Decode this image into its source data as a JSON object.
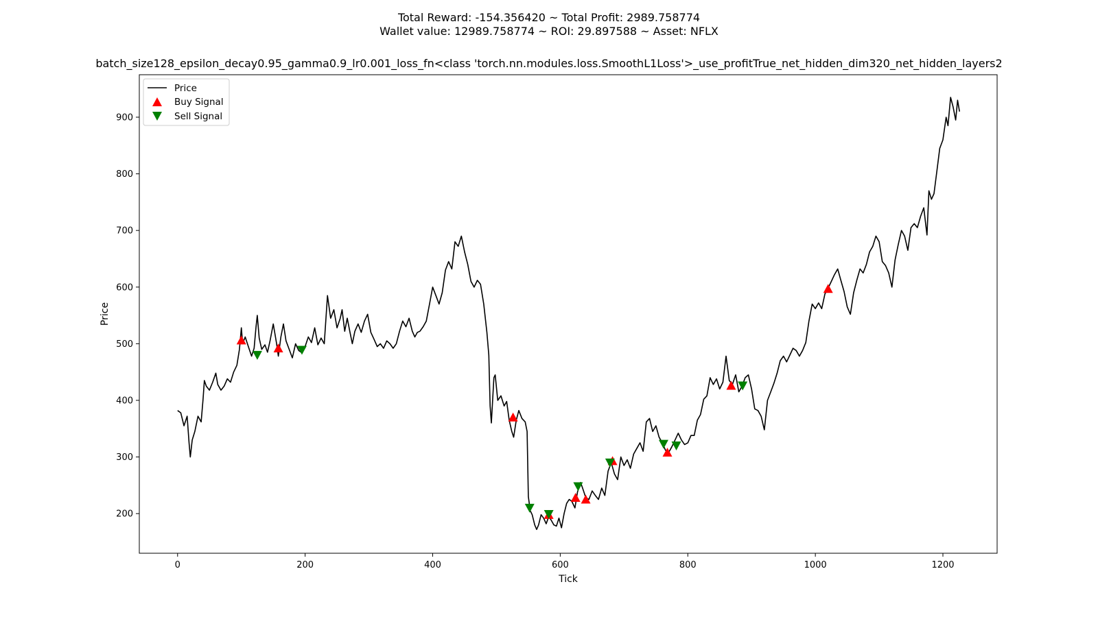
{
  "chart_data": {
    "type": "line",
    "title_line1": "Total Reward: -154.356420 ~ Total Profit: 2989.758774",
    "title_line2": "Wallet value: 12989.758774 ~ ROI: 29.897588 ~ Asset: NFLX",
    "subtitle": "batch_size128_epsilon_decay0.95_gamma0.9_lr0.001_loss_fn<class 'torch.nn.modules.loss.SmoothL1Loss'>_use_profitTrue_net_hidden_dim320_net_hidden_layers2",
    "xlabel": "Tick",
    "ylabel": "Price",
    "xlim": [
      -60,
      1285
    ],
    "ylim": [
      130,
      975
    ],
    "xticks": [
      0,
      200,
      400,
      600,
      800,
      1000,
      1200
    ],
    "yticks": [
      200,
      300,
      400,
      500,
      600,
      700,
      800,
      900
    ],
    "grid": false,
    "legend_position": "top-left",
    "legend": [
      {
        "label": "Price",
        "kind": "line",
        "color": "#000000"
      },
      {
        "label": "Buy Signal",
        "kind": "triangle-up",
        "color": "#ff0000"
      },
      {
        "label": "Sell Signal",
        "kind": "triangle-down",
        "color": "#008000"
      }
    ],
    "series": [
      {
        "name": "Price",
        "color": "#000000",
        "points": [
          [
            0,
            382
          ],
          [
            5,
            378
          ],
          [
            10,
            355
          ],
          [
            15,
            372
          ],
          [
            18,
            325
          ],
          [
            20,
            300
          ],
          [
            23,
            330
          ],
          [
            27,
            345
          ],
          [
            32,
            372
          ],
          [
            37,
            362
          ],
          [
            40,
            402
          ],
          [
            42,
            435
          ],
          [
            45,
            425
          ],
          [
            50,
            418
          ],
          [
            55,
            432
          ],
          [
            60,
            448
          ],
          [
            63,
            428
          ],
          [
            68,
            418
          ],
          [
            73,
            425
          ],
          [
            78,
            438
          ],
          [
            83,
            432
          ],
          [
            88,
            450
          ],
          [
            93,
            462
          ],
          [
            97,
            490
          ],
          [
            100,
            528
          ],
          [
            102,
            500
          ],
          [
            106,
            512
          ],
          [
            111,
            495
          ],
          [
            116,
            478
          ],
          [
            120,
            492
          ],
          [
            123,
            530
          ],
          [
            125,
            550
          ],
          [
            128,
            510
          ],
          [
            132,
            490
          ],
          [
            137,
            498
          ],
          [
            141,
            485
          ],
          [
            145,
            505
          ],
          [
            150,
            535
          ],
          [
            155,
            502
          ],
          [
            158,
            478
          ],
          [
            162,
            512
          ],
          [
            166,
            535
          ],
          [
            170,
            505
          ],
          [
            175,
            490
          ],
          [
            180,
            475
          ],
          [
            185,
            500
          ],
          [
            190,
            488
          ],
          [
            195,
            484
          ],
          [
            200,
            495
          ],
          [
            205,
            512
          ],
          [
            210,
            502
          ],
          [
            215,
            528
          ],
          [
            220,
            498
          ],
          [
            225,
            510
          ],
          [
            230,
            500
          ],
          [
            235,
            585
          ],
          [
            240,
            545
          ],
          [
            245,
            560
          ],
          [
            250,
            528
          ],
          [
            255,
            545
          ],
          [
            258,
            560
          ],
          [
            262,
            522
          ],
          [
            266,
            545
          ],
          [
            270,
            522
          ],
          [
            274,
            500
          ],
          [
            278,
            522
          ],
          [
            283,
            535
          ],
          [
            288,
            520
          ],
          [
            293,
            540
          ],
          [
            298,
            552
          ],
          [
            303,
            520
          ],
          [
            308,
            508
          ],
          [
            313,
            495
          ],
          [
            318,
            500
          ],
          [
            323,
            492
          ],
          [
            328,
            505
          ],
          [
            333,
            500
          ],
          [
            338,
            492
          ],
          [
            343,
            500
          ],
          [
            348,
            522
          ],
          [
            353,
            540
          ],
          [
            358,
            530
          ],
          [
            363,
            545
          ],
          [
            368,
            522
          ],
          [
            372,
            512
          ],
          [
            376,
            520
          ],
          [
            380,
            522
          ],
          [
            385,
            530
          ],
          [
            390,
            540
          ],
          [
            395,
            570
          ],
          [
            400,
            600
          ],
          [
            405,
            585
          ],
          [
            410,
            570
          ],
          [
            415,
            590
          ],
          [
            420,
            630
          ],
          [
            425,
            645
          ],
          [
            430,
            632
          ],
          [
            435,
            680
          ],
          [
            440,
            672
          ],
          [
            445,
            690
          ],
          [
            450,
            662
          ],
          [
            455,
            640
          ],
          [
            460,
            610
          ],
          [
            465,
            600
          ],
          [
            470,
            612
          ],
          [
            475,
            605
          ],
          [
            480,
            570
          ],
          [
            485,
            520
          ],
          [
            488,
            480
          ],
          [
            490,
            390
          ],
          [
            492,
            360
          ],
          [
            496,
            440
          ],
          [
            498,
            445
          ],
          [
            502,
            400
          ],
          [
            507,
            408
          ],
          [
            512,
            390
          ],
          [
            516,
            398
          ],
          [
            520,
            365
          ],
          [
            524,
            345
          ],
          [
            527,
            335
          ],
          [
            531,
            365
          ],
          [
            535,
            382
          ],
          [
            540,
            368
          ],
          [
            545,
            362
          ],
          [
            548,
            345
          ],
          [
            550,
            230
          ],
          [
            553,
            205
          ],
          [
            556,
            198
          ],
          [
            560,
            180
          ],
          [
            563,
            172
          ],
          [
            566,
            180
          ],
          [
            570,
            198
          ],
          [
            574,
            192
          ],
          [
            578,
            182
          ],
          [
            582,
            195
          ],
          [
            586,
            188
          ],
          [
            590,
            180
          ],
          [
            594,
            178
          ],
          [
            598,
            192
          ],
          [
            602,
            175
          ],
          [
            606,
            200
          ],
          [
            610,
            218
          ],
          [
            614,
            225
          ],
          [
            618,
            222
          ],
          [
            623,
            210
          ],
          [
            627,
            238
          ],
          [
            632,
            255
          ],
          [
            636,
            242
          ],
          [
            640,
            228
          ],
          [
            645,
            225
          ],
          [
            650,
            240
          ],
          [
            655,
            232
          ],
          [
            660,
            225
          ],
          [
            665,
            245
          ],
          [
            670,
            232
          ],
          [
            675,
            275
          ],
          [
            680,
            290
          ],
          [
            685,
            270
          ],
          [
            690,
            260
          ],
          [
            695,
            300
          ],
          [
            700,
            285
          ],
          [
            705,
            295
          ],
          [
            710,
            280
          ],
          [
            715,
            305
          ],
          [
            720,
            315
          ],
          [
            725,
            325
          ],
          [
            730,
            310
          ],
          [
            735,
            362
          ],
          [
            740,
            368
          ],
          [
            745,
            345
          ],
          [
            750,
            355
          ],
          [
            755,
            335
          ],
          [
            760,
            325
          ],
          [
            765,
            312
          ],
          [
            770,
            308
          ],
          [
            775,
            318
          ],
          [
            780,
            330
          ],
          [
            785,
            342
          ],
          [
            790,
            330
          ],
          [
            795,
            322
          ],
          [
            800,
            325
          ],
          [
            805,
            338
          ],
          [
            810,
            338
          ],
          [
            815,
            365
          ],
          [
            820,
            375
          ],
          [
            825,
            402
          ],
          [
            830,
            408
          ],
          [
            835,
            440
          ],
          [
            840,
            428
          ],
          [
            845,
            438
          ],
          [
            850,
            420
          ],
          [
            855,
            432
          ],
          [
            860,
            478
          ],
          [
            865,
            435
          ],
          [
            870,
            428
          ],
          [
            875,
            445
          ],
          [
            880,
            415
          ],
          [
            885,
            425
          ],
          [
            890,
            440
          ],
          [
            895,
            445
          ],
          [
            900,
            420
          ],
          [
            905,
            385
          ],
          [
            910,
            382
          ],
          [
            915,
            372
          ],
          [
            920,
            348
          ],
          [
            925,
            400
          ],
          [
            930,
            415
          ],
          [
            935,
            430
          ],
          [
            940,
            448
          ],
          [
            945,
            470
          ],
          [
            950,
            478
          ],
          [
            955,
            468
          ],
          [
            960,
            480
          ],
          [
            965,
            492
          ],
          [
            970,
            488
          ],
          [
            975,
            478
          ],
          [
            980,
            488
          ],
          [
            985,
            502
          ],
          [
            990,
            540
          ],
          [
            995,
            570
          ],
          [
            1000,
            562
          ],
          [
            1005,
            572
          ],
          [
            1010,
            562
          ],
          [
            1015,
            588
          ],
          [
            1020,
            598
          ],
          [
            1025,
            610
          ],
          [
            1030,
            622
          ],
          [
            1035,
            632
          ],
          [
            1040,
            612
          ],
          [
            1045,
            592
          ],
          [
            1050,
            565
          ],
          [
            1055,
            552
          ],
          [
            1060,
            590
          ],
          [
            1065,
            612
          ],
          [
            1070,
            632
          ],
          [
            1075,
            625
          ],
          [
            1080,
            640
          ],
          [
            1085,
            662
          ],
          [
            1090,
            672
          ],
          [
            1095,
            690
          ],
          [
            1100,
            680
          ],
          [
            1105,
            645
          ],
          [
            1110,
            638
          ],
          [
            1115,
            625
          ],
          [
            1120,
            600
          ],
          [
            1125,
            648
          ],
          [
            1130,
            675
          ],
          [
            1135,
            700
          ],
          [
            1140,
            690
          ],
          [
            1145,
            665
          ],
          [
            1150,
            705
          ],
          [
            1155,
            712
          ],
          [
            1160,
            705
          ],
          [
            1165,
            725
          ],
          [
            1170,
            740
          ],
          [
            1175,
            692
          ],
          [
            1178,
            770
          ],
          [
            1182,
            755
          ],
          [
            1186,
            765
          ],
          [
            1190,
            800
          ],
          [
            1195,
            845
          ],
          [
            1200,
            860
          ],
          [
            1205,
            900
          ],
          [
            1208,
            885
          ],
          [
            1212,
            935
          ],
          [
            1216,
            918
          ],
          [
            1220,
            895
          ],
          [
            1223,
            930
          ],
          [
            1226,
            910
          ]
        ]
      }
    ],
    "buy_signals": [
      [
        100,
        506
      ],
      [
        158,
        492
      ],
      [
        526,
        370
      ],
      [
        582,
        198
      ],
      [
        624,
        228
      ],
      [
        640,
        225
      ],
      [
        682,
        293
      ],
      [
        768,
        308
      ],
      [
        868,
        426
      ],
      [
        1020,
        597
      ]
    ],
    "sell_signals": [
      [
        125,
        480
      ],
      [
        195,
        489
      ],
      [
        552,
        210
      ],
      [
        582,
        199
      ],
      [
        628,
        248
      ],
      [
        678,
        290
      ],
      [
        762,
        323
      ],
      [
        782,
        320
      ],
      [
        886,
        426
      ]
    ]
  }
}
